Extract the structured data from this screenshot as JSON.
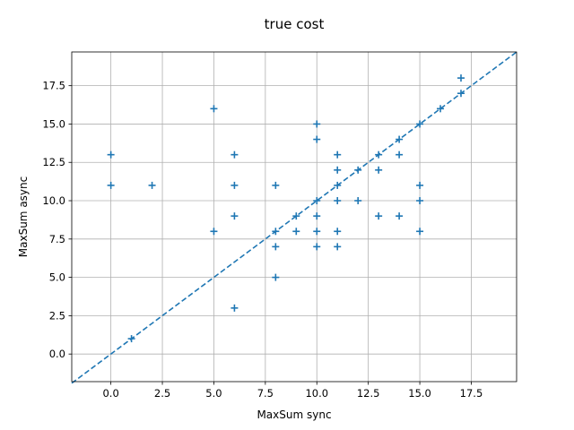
{
  "chart_data": {
    "type": "scatter",
    "title": "true cost",
    "xlabel": "MaxSum sync",
    "ylabel": "MaxSum async",
    "xlim": [
      -1.9,
      19.7
    ],
    "ylim": [
      -1.8,
      19.7
    ],
    "xticks": [
      "0.0",
      "2.5",
      "5.0",
      "7.5",
      "10.0",
      "12.5",
      "15.0",
      "17.5"
    ],
    "yticks": [
      "0.0",
      "2.5",
      "5.0",
      "7.5",
      "10.0",
      "12.5",
      "15.0",
      "17.5"
    ],
    "grid": true,
    "marker": "+",
    "color": "#1f77b4",
    "reference_line": {
      "style": "dashed",
      "slope": 1,
      "intercept": 0
    },
    "points": [
      {
        "x": 0,
        "y": 13
      },
      {
        "x": 0,
        "y": 11
      },
      {
        "x": 1,
        "y": 1
      },
      {
        "x": 2,
        "y": 11
      },
      {
        "x": 5,
        "y": 16
      },
      {
        "x": 5,
        "y": 8
      },
      {
        "x": 6,
        "y": 13
      },
      {
        "x": 6,
        "y": 11
      },
      {
        "x": 6,
        "y": 9
      },
      {
        "x": 6,
        "y": 3
      },
      {
        "x": 8,
        "y": 11
      },
      {
        "x": 8,
        "y": 8
      },
      {
        "x": 8,
        "y": 7
      },
      {
        "x": 8,
        "y": 5
      },
      {
        "x": 9,
        "y": 9
      },
      {
        "x": 9,
        "y": 8
      },
      {
        "x": 10,
        "y": 15
      },
      {
        "x": 10,
        "y": 14
      },
      {
        "x": 10,
        "y": 10
      },
      {
        "x": 10,
        "y": 9
      },
      {
        "x": 10,
        "y": 8
      },
      {
        "x": 10,
        "y": 7
      },
      {
        "x": 11,
        "y": 13
      },
      {
        "x": 11,
        "y": 12
      },
      {
        "x": 11,
        "y": 11
      },
      {
        "x": 11,
        "y": 10
      },
      {
        "x": 11,
        "y": 8
      },
      {
        "x": 11,
        "y": 7
      },
      {
        "x": 12,
        "y": 12
      },
      {
        "x": 12,
        "y": 10
      },
      {
        "x": 13,
        "y": 13
      },
      {
        "x": 13,
        "y": 12
      },
      {
        "x": 13,
        "y": 9
      },
      {
        "x": 14,
        "y": 14
      },
      {
        "x": 14,
        "y": 13
      },
      {
        "x": 14,
        "y": 9
      },
      {
        "x": 15,
        "y": 15
      },
      {
        "x": 15,
        "y": 11
      },
      {
        "x": 15,
        "y": 10
      },
      {
        "x": 15,
        "y": 8
      },
      {
        "x": 16,
        "y": 16
      },
      {
        "x": 17,
        "y": 18
      },
      {
        "x": 17,
        "y": 17
      }
    ]
  }
}
